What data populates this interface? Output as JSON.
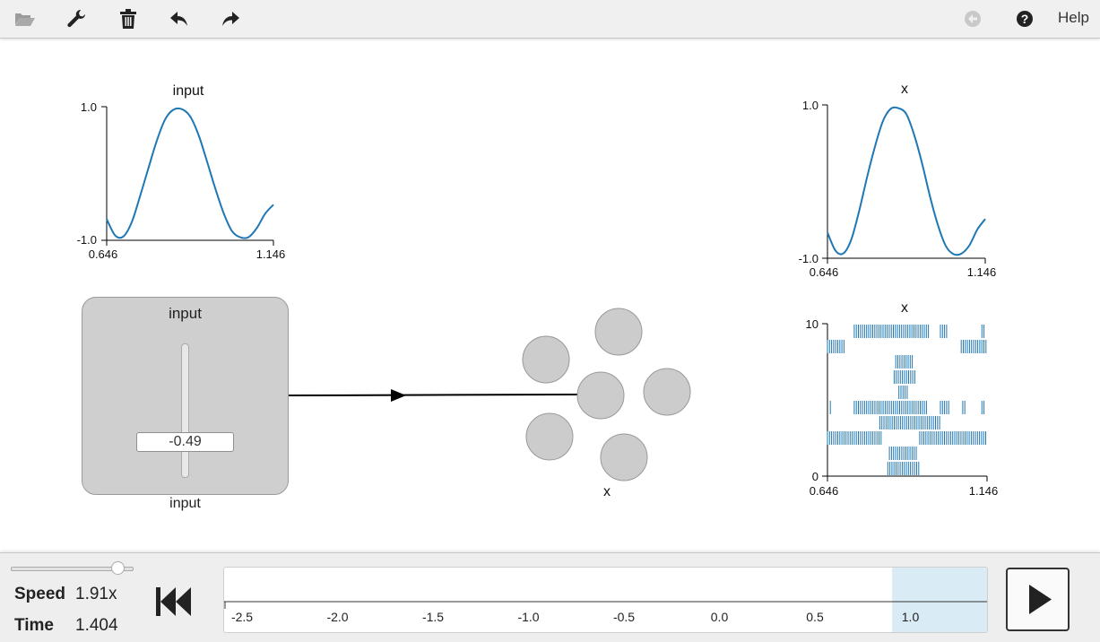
{
  "toolbar": {
    "buttons": [
      {
        "name": "open",
        "icon": "folder-open-icon",
        "enabled": false
      },
      {
        "name": "settings",
        "icon": "wrench-icon",
        "enabled": true
      },
      {
        "name": "delete",
        "icon": "trash-icon",
        "enabled": true
      },
      {
        "name": "undo",
        "icon": "undo-icon",
        "enabled": true
      },
      {
        "name": "redo",
        "icon": "redo-icon",
        "enabled": true
      },
      {
        "name": "back",
        "icon": "circle-arrow-left-icon",
        "enabled": false
      },
      {
        "name": "help",
        "icon": "question-circle-icon",
        "enabled": true
      }
    ],
    "help_label": "Help"
  },
  "plots": {
    "input_plot": {
      "title": "input",
      "y_max": "1.0",
      "y_min": "-1.0",
      "x_min": "0.646",
      "x_max": "1.146"
    },
    "x_value_plot": {
      "title": "x",
      "y_max": "1.0",
      "y_min": "-1.0",
      "x_min": "0.646",
      "x_max": "1.146"
    },
    "x_spike_plot": {
      "title": "x",
      "y_max": "10",
      "y_min": "0",
      "x_min": "0.646",
      "x_max": "1.146"
    }
  },
  "slider_node": {
    "title": "input",
    "value": "-0.49",
    "caption": "input"
  },
  "ensemble": {
    "label": "x",
    "neuron_count": 6
  },
  "sim": {
    "speed_label": "Speed",
    "speed_value": "1.91x",
    "time_label": "Time",
    "time_value": "1.404",
    "speed_fraction": 0.88
  },
  "timeline": {
    "ticks": [
      "-2.5",
      "-2.0",
      "-1.5",
      "-1.0",
      "-0.5",
      "0.0",
      "0.5",
      "1.0"
    ],
    "window": [
      0.904,
      1.404
    ]
  },
  "colors": {
    "series": "#1f77b4",
    "neuron": "#cccccc",
    "window": "#d9ebf5"
  },
  "chart_data": [
    {
      "type": "line",
      "title": "input",
      "x_range": [
        0.646,
        1.146
      ],
      "ylim": [
        -1.0,
        1.0
      ],
      "series": [
        {
          "x": [
            0.646,
            0.671,
            0.696,
            0.721,
            0.746,
            0.771,
            0.796,
            0.821,
            0.846,
            0.871,
            0.896,
            0.921,
            0.946,
            0.971,
            0.996,
            1.021,
            1.046,
            1.071,
            1.096,
            1.121,
            1.146
          ],
          "values": [
            -0.7,
            -0.95,
            -0.97,
            -0.75,
            -0.35,
            0.08,
            0.5,
            0.83,
            0.98,
            0.99,
            0.88,
            0.6,
            0.2,
            -0.22,
            -0.6,
            -0.88,
            -0.98,
            -0.98,
            -0.84,
            -0.62,
            -0.48
          ]
        }
      ]
    },
    {
      "type": "line",
      "title": "x",
      "x_range": [
        0.646,
        1.146
      ],
      "ylim": [
        -1.0,
        1.0
      ],
      "series": [
        {
          "x": [
            0.646,
            0.671,
            0.696,
            0.721,
            0.746,
            0.771,
            0.796,
            0.821,
            0.846,
            0.871,
            0.896,
            0.921,
            0.946,
            0.971,
            0.996,
            1.021,
            1.046,
            1.071,
            1.096,
            1.121,
            1.146
          ],
          "values": [
            -0.68,
            -0.92,
            -0.96,
            -0.78,
            -0.4,
            0.05,
            0.46,
            0.8,
            0.97,
            0.98,
            0.9,
            0.62,
            0.24,
            -0.2,
            -0.58,
            -0.86,
            -0.97,
            -0.96,
            -0.85,
            -0.64,
            -0.5
          ]
        }
      ]
    },
    {
      "type": "scatter",
      "title": "x",
      "subtype": "spike-raster",
      "x_range": [
        0.646,
        1.146
      ],
      "ylim": [
        0,
        10
      ],
      "series": [
        {
          "neuron": 8,
          "spike_intervals": [
            [
              0.646,
              0.7
            ],
            [
              1.065,
              1.146
            ]
          ]
        },
        {
          "neuron": 9,
          "spike_intervals": [
            [
              0.73,
              0.775
            ],
            [
              0.775,
              0.965
            ],
            [
              1.0,
              1.02
            ],
            [
              1.13,
              1.14
            ]
          ]
        },
        {
          "neuron": 7,
          "spike_intervals": [
            [
              0.86,
              0.915
            ]
          ]
        },
        {
          "neuron": 6,
          "spike_intervals": [
            [
              0.855,
              0.92
            ]
          ]
        },
        {
          "neuron": 5,
          "spike_intervals": [
            [
              0.87,
              0.9
            ]
          ]
        },
        {
          "neuron": 4,
          "spike_intervals": [
            [
              0.655,
              0.66
            ],
            [
              0.73,
              0.96
            ],
            [
              1.0,
              1.03
            ],
            [
              1.07,
              1.08
            ],
            [
              1.13,
              1.14
            ]
          ]
        },
        {
          "neuron": 3,
          "spike_intervals": [
            [
              0.81,
              1.0
            ]
          ]
        },
        {
          "neuron": 2,
          "spike_intervals": [
            [
              0.646,
              0.82
            ],
            [
              0.935,
              1.146
            ]
          ]
        },
        {
          "neuron": 1,
          "spike_intervals": [
            [
              0.84,
              0.93
            ]
          ]
        },
        {
          "neuron": 0,
          "spike_intervals": [
            [
              0.835,
              0.935
            ]
          ]
        }
      ]
    }
  ]
}
